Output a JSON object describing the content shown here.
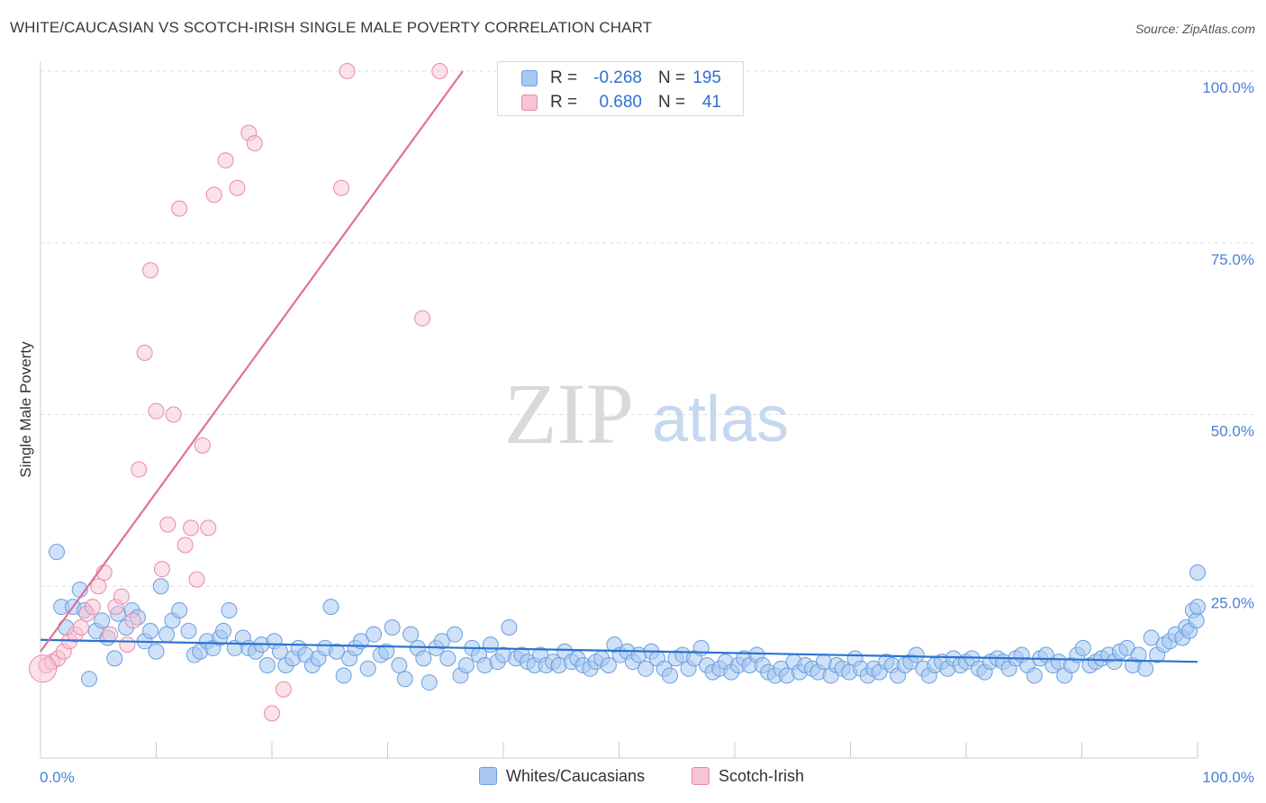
{
  "header": {
    "title": "WHITE/CAUCASIAN VS SCOTCH-IRISH SINGLE MALE POVERTY CORRELATION CHART",
    "source": "Source: ZipAtlas.com"
  },
  "colors": {
    "blue_fill": "#a8c8f0",
    "blue_stroke": "#6a9ee0",
    "blue_line": "#2a73d0",
    "pink_fill": "#f7c4d4",
    "pink_stroke": "#e88aa8",
    "pink_line": "#e07098",
    "axis_label": "#4a7fd4",
    "grid": "#dddddd"
  },
  "legend": {
    "r_label": "R =",
    "n_label": "N =",
    "series": [
      {
        "name": "Whites/Caucasians",
        "r": "-0.268",
        "n": "195"
      },
      {
        "name": "Scotch-Irish",
        "r": "0.680",
        "n": "41"
      }
    ]
  },
  "watermark": {
    "zip": "ZIP",
    "atlas": "atlas"
  },
  "chart_data": {
    "type": "scatter",
    "title": "WHITE/CAUCASIAN VS SCOTCH-IRISH SINGLE MALE POVERTY CORRELATION CHART",
    "xlabel": "",
    "ylabel": "Single Male Poverty",
    "xlim": [
      0,
      100
    ],
    "ylim": [
      0,
      100
    ],
    "x_tick_labels": [
      "0.0%",
      "100.0%"
    ],
    "y_ticks": [
      25,
      50,
      75,
      100
    ],
    "y_tick_labels": [
      "25.0%",
      "50.0%",
      "75.0%",
      "100.0%"
    ],
    "series": [
      {
        "name": "Whites/Caucasians",
        "r": -0.268,
        "n": 195,
        "trend": {
          "x": [
            0,
            100
          ],
          "y": [
            17.2,
            14.0
          ]
        },
        "points": [
          [
            1.4,
            30.0
          ],
          [
            1.8,
            22.0
          ],
          [
            2.2,
            19.0
          ],
          [
            2.8,
            22.0
          ],
          [
            3.4,
            24.5
          ],
          [
            3.8,
            21.5
          ],
          [
            4.2,
            11.5
          ],
          [
            4.8,
            18.5
          ],
          [
            5.3,
            20.0
          ],
          [
            5.8,
            17.5
          ],
          [
            6.4,
            14.5
          ],
          [
            6.7,
            21.0
          ],
          [
            7.4,
            19.0
          ],
          [
            7.9,
            21.5
          ],
          [
            8.4,
            20.5
          ],
          [
            9.0,
            17.0
          ],
          [
            9.5,
            18.5
          ],
          [
            10.0,
            15.5
          ],
          [
            10.4,
            25.0
          ],
          [
            10.9,
            18.0
          ],
          [
            11.4,
            20.0
          ],
          [
            12.0,
            21.5
          ],
          [
            12.8,
            18.5
          ],
          [
            13.3,
            15.0
          ],
          [
            13.8,
            15.5
          ],
          [
            14.4,
            17.0
          ],
          [
            14.9,
            16.0
          ],
          [
            15.5,
            17.5
          ],
          [
            15.8,
            18.5
          ],
          [
            16.3,
            21.5
          ],
          [
            16.8,
            16.0
          ],
          [
            17.5,
            17.5
          ],
          [
            18.0,
            16.0
          ],
          [
            18.6,
            15.5
          ],
          [
            19.1,
            16.5
          ],
          [
            19.6,
            13.5
          ],
          [
            20.2,
            17.0
          ],
          [
            20.7,
            15.5
          ],
          [
            21.2,
            13.5
          ],
          [
            21.8,
            14.5
          ],
          [
            22.3,
            16.0
          ],
          [
            22.9,
            15.0
          ],
          [
            23.5,
            13.5
          ],
          [
            24.0,
            14.5
          ],
          [
            24.6,
            16.0
          ],
          [
            25.1,
            22.0
          ],
          [
            25.6,
            15.5
          ],
          [
            26.2,
            12.0
          ],
          [
            26.7,
            14.5
          ],
          [
            27.2,
            16.0
          ],
          [
            27.7,
            17.0
          ],
          [
            28.3,
            13.0
          ],
          [
            28.8,
            18.0
          ],
          [
            29.4,
            15.0
          ],
          [
            29.9,
            15.5
          ],
          [
            30.4,
            19.0
          ],
          [
            31.0,
            13.5
          ],
          [
            31.5,
            11.5
          ],
          [
            32.0,
            18.0
          ],
          [
            32.6,
            16.0
          ],
          [
            33.1,
            14.5
          ],
          [
            33.6,
            11.0
          ],
          [
            34.2,
            16.0
          ],
          [
            34.7,
            17.0
          ],
          [
            35.2,
            14.5
          ],
          [
            35.8,
            18.0
          ],
          [
            36.3,
            12.0
          ],
          [
            36.8,
            13.5
          ],
          [
            37.3,
            16.0
          ],
          [
            37.9,
            15.0
          ],
          [
            38.4,
            13.5
          ],
          [
            38.9,
            16.5
          ],
          [
            39.5,
            14.0
          ],
          [
            40.0,
            15.0
          ],
          [
            40.5,
            19.0
          ],
          [
            41.1,
            14.5
          ],
          [
            41.6,
            15.0
          ],
          [
            42.1,
            14.0
          ],
          [
            42.7,
            13.5
          ],
          [
            43.2,
            15.0
          ],
          [
            43.7,
            13.5
          ],
          [
            44.3,
            14.0
          ],
          [
            44.8,
            13.5
          ],
          [
            45.3,
            15.5
          ],
          [
            45.9,
            14.0
          ],
          [
            46.4,
            14.5
          ],
          [
            46.9,
            13.5
          ],
          [
            47.5,
            13.0
          ],
          [
            48.0,
            14.0
          ],
          [
            48.5,
            14.5
          ],
          [
            49.1,
            13.5
          ],
          [
            49.6,
            16.5
          ],
          [
            50.1,
            15.0
          ],
          [
            50.7,
            15.5
          ],
          [
            51.2,
            14.0
          ],
          [
            51.7,
            15.0
          ],
          [
            52.3,
            13.0
          ],
          [
            52.8,
            15.5
          ],
          [
            53.3,
            14.5
          ],
          [
            53.9,
            13.0
          ],
          [
            54.4,
            12.0
          ],
          [
            54.9,
            14.5
          ],
          [
            55.5,
            15.0
          ],
          [
            56.0,
            13.0
          ],
          [
            56.5,
            14.5
          ],
          [
            57.1,
            16.0
          ],
          [
            57.6,
            13.5
          ],
          [
            58.1,
            12.5
          ],
          [
            58.7,
            13.0
          ],
          [
            59.2,
            14.0
          ],
          [
            59.7,
            12.5
          ],
          [
            60.3,
            13.5
          ],
          [
            60.8,
            14.5
          ],
          [
            61.3,
            13.5
          ],
          [
            61.9,
            15.0
          ],
          [
            62.4,
            13.5
          ],
          [
            62.9,
            12.5
          ],
          [
            63.5,
            12.0
          ],
          [
            64.0,
            13.0
          ],
          [
            64.5,
            12.0
          ],
          [
            65.1,
            14.0
          ],
          [
            65.6,
            12.5
          ],
          [
            66.1,
            13.5
          ],
          [
            66.7,
            13.0
          ],
          [
            67.2,
            12.5
          ],
          [
            67.7,
            14.0
          ],
          [
            68.3,
            12.0
          ],
          [
            68.8,
            13.5
          ],
          [
            69.3,
            13.0
          ],
          [
            69.9,
            12.5
          ],
          [
            70.4,
            14.5
          ],
          [
            70.9,
            13.0
          ],
          [
            71.5,
            12.0
          ],
          [
            72.0,
            13.0
          ],
          [
            72.5,
            12.5
          ],
          [
            73.1,
            14.0
          ],
          [
            73.6,
            13.5
          ],
          [
            74.1,
            12.0
          ],
          [
            74.7,
            13.5
          ],
          [
            75.2,
            14.0
          ],
          [
            75.7,
            15.0
          ],
          [
            76.3,
            13.0
          ],
          [
            76.8,
            12.0
          ],
          [
            77.3,
            13.5
          ],
          [
            77.9,
            14.0
          ],
          [
            78.4,
            13.0
          ],
          [
            78.9,
            14.5
          ],
          [
            79.5,
            13.5
          ],
          [
            80.0,
            14.0
          ],
          [
            80.5,
            14.5
          ],
          [
            81.1,
            13.0
          ],
          [
            81.6,
            12.5
          ],
          [
            82.1,
            14.0
          ],
          [
            82.7,
            14.5
          ],
          [
            83.2,
            14.0
          ],
          [
            83.7,
            13.0
          ],
          [
            84.3,
            14.5
          ],
          [
            84.8,
            15.0
          ],
          [
            85.3,
            13.5
          ],
          [
            85.9,
            12.0
          ],
          [
            86.4,
            14.5
          ],
          [
            86.9,
            15.0
          ],
          [
            87.5,
            13.5
          ],
          [
            88.0,
            14.0
          ],
          [
            88.5,
            12.0
          ],
          [
            89.1,
            13.5
          ],
          [
            89.6,
            15.0
          ],
          [
            90.1,
            16.0
          ],
          [
            90.7,
            13.5
          ],
          [
            91.2,
            14.0
          ],
          [
            91.7,
            14.5
          ],
          [
            92.3,
            15.0
          ],
          [
            92.8,
            14.0
          ],
          [
            93.3,
            15.5
          ],
          [
            93.9,
            16.0
          ],
          [
            94.4,
            13.5
          ],
          [
            94.9,
            15.0
          ],
          [
            95.5,
            13.0
          ],
          [
            96.0,
            17.5
          ],
          [
            96.5,
            15.0
          ],
          [
            97.1,
            16.5
          ],
          [
            97.6,
            17.0
          ],
          [
            98.1,
            18.0
          ],
          [
            98.7,
            17.5
          ],
          [
            99.0,
            19.0
          ],
          [
            99.3,
            18.5
          ],
          [
            99.6,
            21.5
          ],
          [
            99.9,
            20.0
          ],
          [
            100.0,
            22.0
          ],
          [
            100.0,
            27.0
          ]
        ]
      },
      {
        "name": "Scotch-Irish",
        "r": 0.68,
        "n": 41,
        "trend": {
          "x": [
            0,
            36.5
          ],
          "y": [
            15.5,
            100
          ]
        },
        "points": [
          [
            0.5,
            13.5
          ],
          [
            1.0,
            14.0
          ],
          [
            1.5,
            14.5
          ],
          [
            2.0,
            15.5
          ],
          [
            2.5,
            17.0
          ],
          [
            3.0,
            18.0
          ],
          [
            3.5,
            19.0
          ],
          [
            4.0,
            21.0
          ],
          [
            4.5,
            22.0
          ],
          [
            5.0,
            25.0
          ],
          [
            5.5,
            27.0
          ],
          [
            6.0,
            18.0
          ],
          [
            6.5,
            22.0
          ],
          [
            7.0,
            23.5
          ],
          [
            7.5,
            16.5
          ],
          [
            8.0,
            20.0
          ],
          [
            8.5,
            42.0
          ],
          [
            9.0,
            59.0
          ],
          [
            9.5,
            71.0
          ],
          [
            10.0,
            50.5
          ],
          [
            10.5,
            27.5
          ],
          [
            11.0,
            34.0
          ],
          [
            11.5,
            50.0
          ],
          [
            12.0,
            80.0
          ],
          [
            12.5,
            31.0
          ],
          [
            13.0,
            33.5
          ],
          [
            13.5,
            26.0
          ],
          [
            14.0,
            45.5
          ],
          [
            14.5,
            33.5
          ],
          [
            15.0,
            82.0
          ],
          [
            16.0,
            87.0
          ],
          [
            17.0,
            83.0
          ],
          [
            18.0,
            91.0
          ],
          [
            18.5,
            89.5
          ],
          [
            20.0,
            6.5
          ],
          [
            21.0,
            10.0
          ],
          [
            26.0,
            83.0
          ],
          [
            26.5,
            100.0
          ],
          [
            33.0,
            64.0
          ],
          [
            34.5,
            100.0
          ],
          [
            0.2,
            13.0
          ]
        ]
      }
    ]
  }
}
